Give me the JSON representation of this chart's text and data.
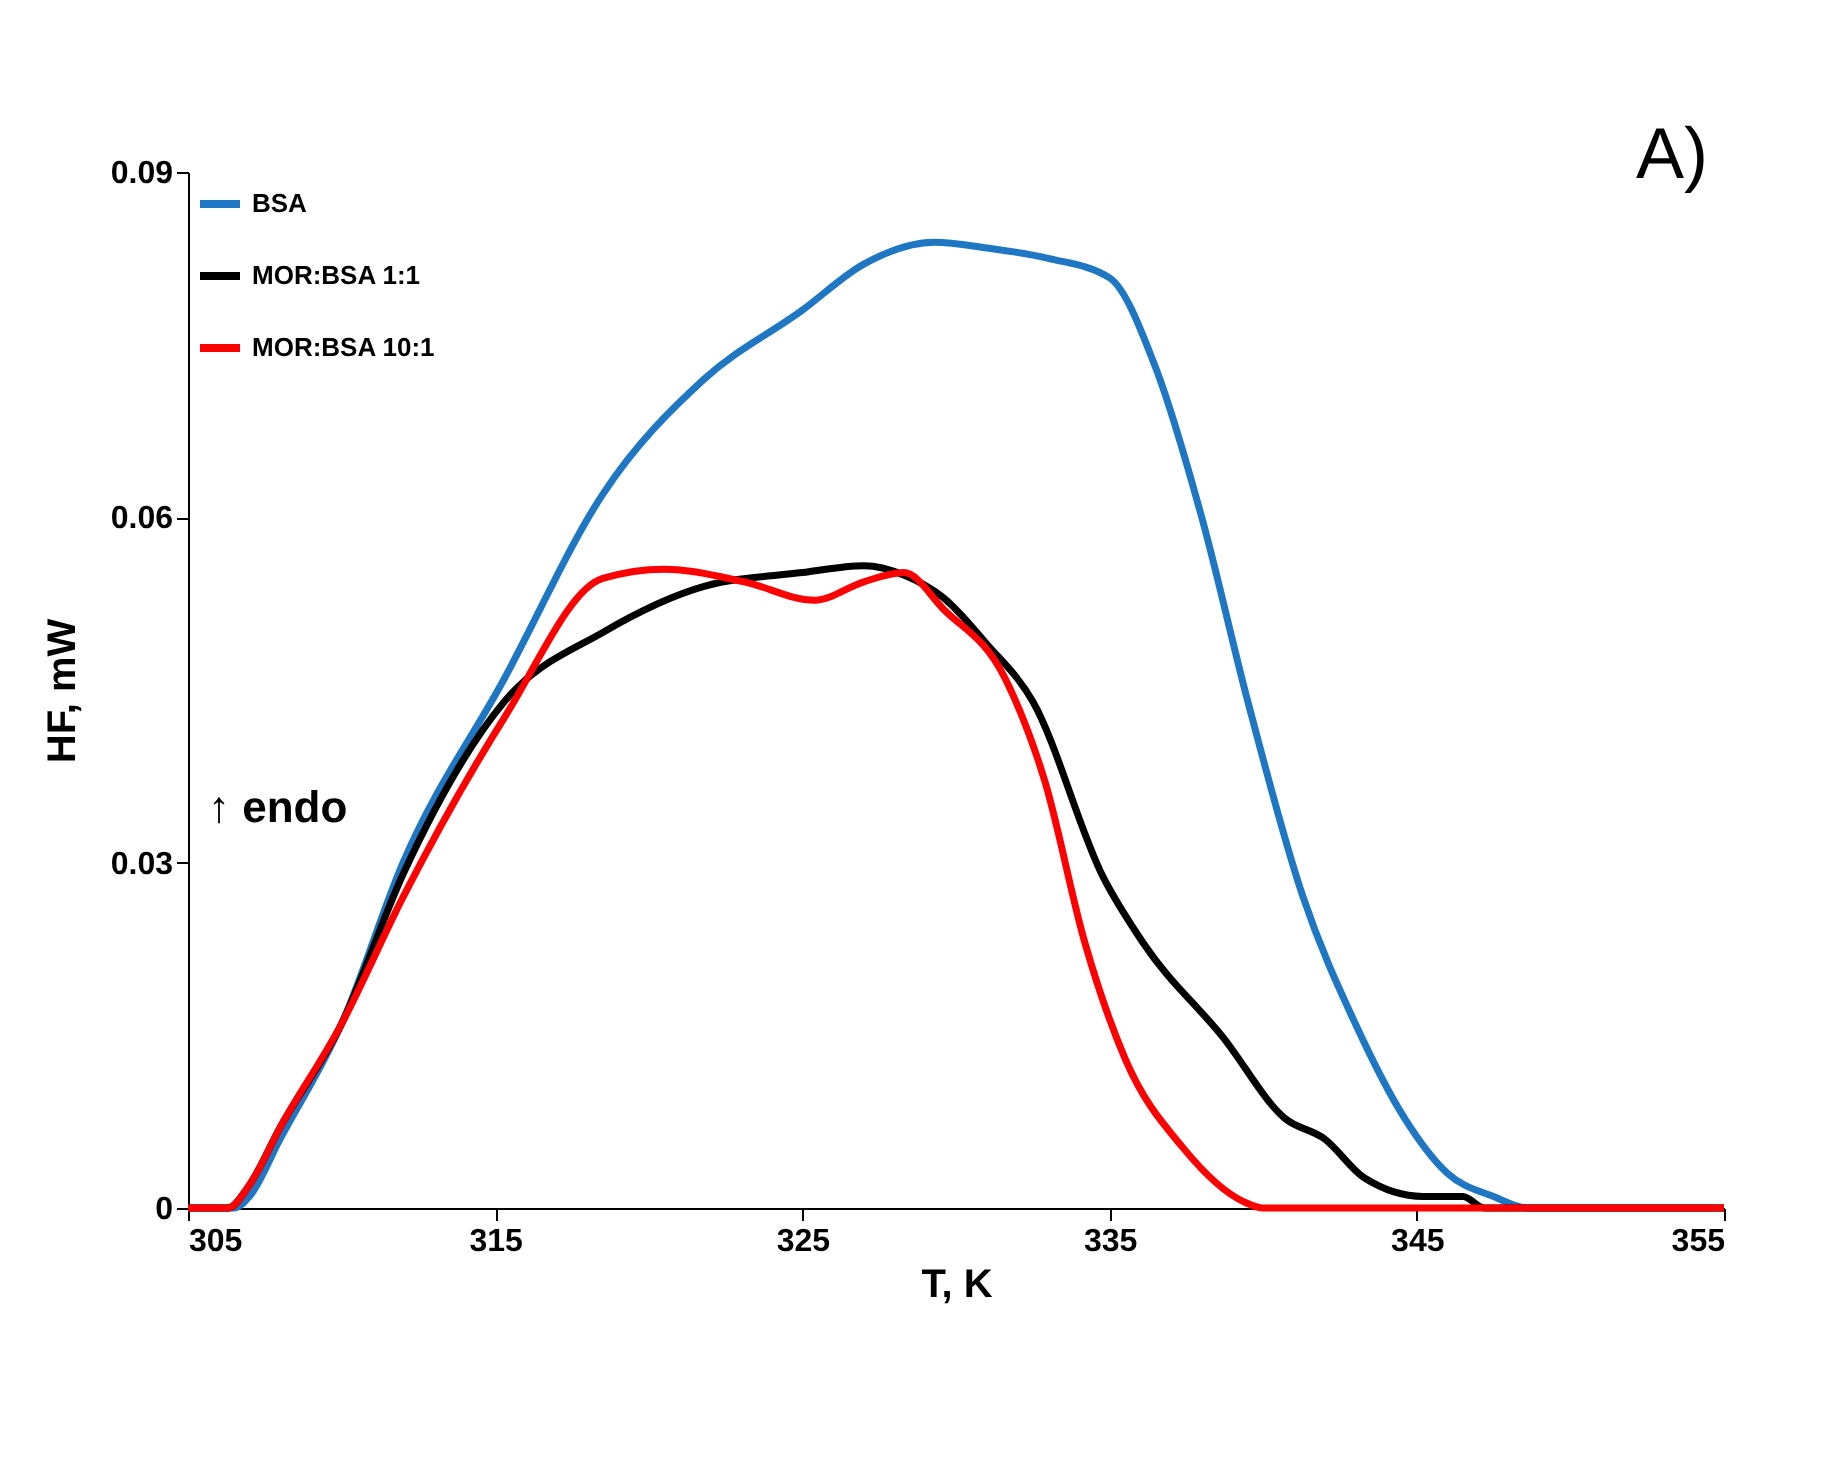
{
  "chart_data": {
    "type": "line",
    "xlabel": "T, K",
    "ylabel": "HF, mW",
    "xlim": [
      305,
      355
    ],
    "xticks": [
      305,
      315,
      325,
      335,
      345,
      355
    ],
    "ylim": [
      0,
      0.09
    ],
    "yticks": [
      0,
      0.03,
      0.06,
      0.09
    ],
    "grid": false,
    "legend": "top left",
    "marker": "none",
    "line_style": "solid",
    "annotations": [
      "↑ endo",
      "A)"
    ],
    "series": [
      {
        "name": "BSA",
        "color": "#1f77c4",
        "x": [
          305,
          306.5,
          307,
          308,
          310,
          312,
          315.3,
          318.5,
          321.8,
          325,
          327,
          329.3,
          331,
          333,
          335,
          336.5,
          338,
          339.5,
          341.3,
          343,
          344.6,
          346,
          347.5,
          348.6,
          355
        ],
        "values": [
          0,
          0,
          0.001,
          0.006,
          0.016,
          0.03,
          0.046,
          0.062,
          0.072,
          0.078,
          0.082,
          0.0839,
          0.0834,
          0.0825,
          0.0808,
          0.073,
          0.06,
          0.044,
          0.027,
          0.016,
          0.0078,
          0.003,
          0.001,
          0,
          0
        ]
      },
      {
        "name": "MOR:BSA 1:1",
        "color": "#000000",
        "x": [
          305,
          306.3,
          307,
          308,
          310,
          312,
          315.3,
          318.5,
          321.8,
          325,
          327,
          328.3,
          329.6,
          331,
          332.5,
          334.8,
          336.1,
          338.7,
          340.7,
          342,
          343.3,
          345.2,
          346.5,
          347.2,
          355
        ],
        "values": [
          0,
          0,
          0.002,
          0.007,
          0.016,
          0.029,
          0.044,
          0.05,
          0.054,
          0.0552,
          0.0558,
          0.055,
          0.053,
          0.049,
          0.044,
          0.0287,
          0.023,
          0.0148,
          0.0078,
          0.006,
          0.0026,
          0.001,
          0.001,
          0,
          0
        ]
      },
      {
        "name": "MOR:BSA 10:1",
        "color": "#ff0000",
        "x": [
          305,
          306.3,
          307,
          308,
          310,
          312,
          315.3,
          318.5,
          320.5,
          323.1,
          325.4,
          327,
          328.3,
          329.6,
          331.6,
          332.9,
          334.2,
          335.5,
          337.4,
          339.4,
          340,
          355
        ],
        "values": [
          0,
          0,
          0.002,
          0.007,
          0.016,
          0.027,
          0.0426,
          0.0547,
          0.0555,
          0.0544,
          0.0528,
          0.0544,
          0.0552,
          0.052,
          0.046,
          0.037,
          0.023,
          0.013,
          0.0052,
          0.0005,
          0,
          0
        ]
      }
    ]
  }
}
